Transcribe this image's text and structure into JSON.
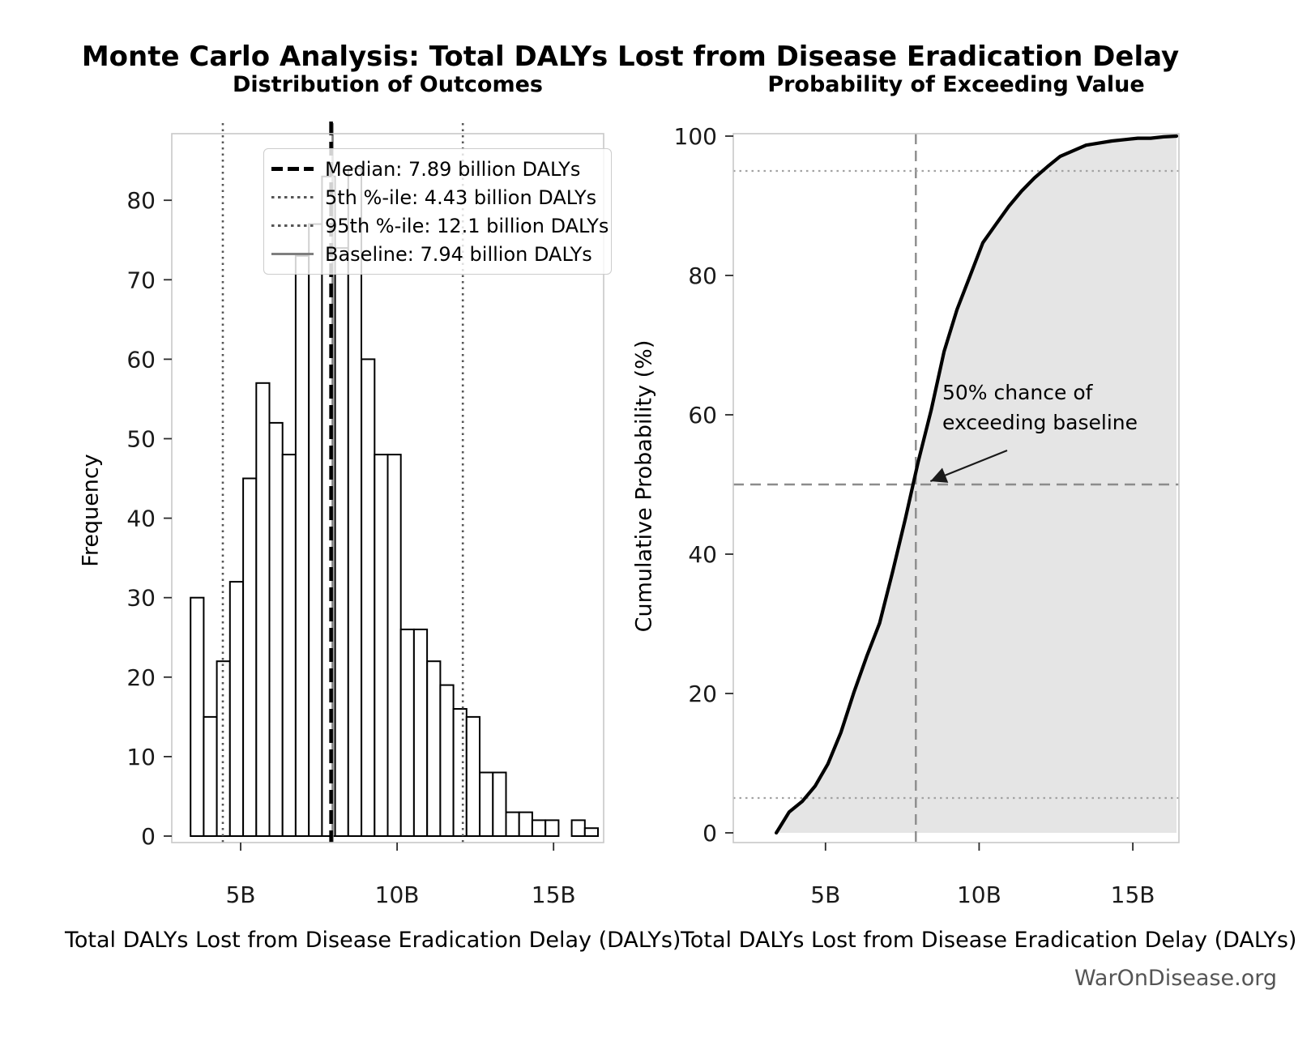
{
  "page": {
    "main_title": "Monte Carlo Analysis: Total DALYs Lost from Disease Eradication Delay",
    "watermark": "WarOnDisease.org"
  },
  "chart_data": [
    {
      "id": "outcome-histogram",
      "type": "bar",
      "title": "Distribution of Outcomes",
      "xlabel": "Total DALYs Lost from Disease Eradication Delay (DALYs)",
      "ylabel": "Frequency",
      "bin_start_billion": 3.4,
      "bin_width_billion": 0.42,
      "values": [
        30,
        15,
        22,
        32,
        45,
        57,
        52,
        48,
        73,
        77,
        83,
        74,
        84,
        60,
        48,
        48,
        26,
        26,
        22,
        19,
        16,
        15,
        8,
        8,
        3,
        3,
        2,
        2,
        0,
        2,
        1
      ],
      "xlim_billion": [
        2.8,
        16.6
      ],
      "ylim": [
        0,
        88
      ],
      "xticks": [
        {
          "value": 5,
          "label": "5B"
        },
        {
          "value": 10,
          "label": "10B"
        },
        {
          "value": 15,
          "label": "15B"
        }
      ],
      "yticks": [
        0,
        10,
        20,
        30,
        40,
        50,
        60,
        70,
        80
      ],
      "grid": false,
      "bar_fill": "#ffffff",
      "bar_edge": "#000000",
      "legend": {
        "position": "upper-left-inside",
        "items": [
          {
            "name": "median",
            "style": "dashed",
            "color": "#000000",
            "value_billion": 7.89,
            "label": "Median: 7.89 billion DALYs"
          },
          {
            "name": "p5",
            "style": "dotted",
            "color": "#565656",
            "value_billion": 4.43,
            "label": "5th %-ile: 4.43 billion DALYs"
          },
          {
            "name": "p95",
            "style": "dotted",
            "color": "#565656",
            "value_billion": 12.1,
            "label": "95th %-ile: 12.1 billion DALYs"
          },
          {
            "name": "baseline",
            "style": "solid",
            "color": "#7f7f7f",
            "value_billion": 7.94,
            "label": "Baseline: 7.94 billion DALYs"
          }
        ]
      }
    },
    {
      "id": "exceedance-cdf",
      "type": "line",
      "title": "Probability of Exceeding Value",
      "xlabel": "Total DALYs Lost from Disease Eradication Delay (DALYs)",
      "ylabel": "Cumulative Probability (%)",
      "x_billion": [
        3.4,
        3.82,
        4.24,
        4.66,
        5.08,
        5.5,
        5.92,
        6.34,
        6.76,
        7.18,
        7.6,
        8.02,
        8.44,
        8.86,
        9.28,
        9.7,
        10.12,
        10.54,
        10.96,
        11.38,
        11.8,
        12.22,
        12.64,
        13.06,
        13.48,
        13.9,
        14.32,
        14.74,
        15.16,
        15.58,
        16.0,
        16.42
      ],
      "y_percent": [
        0,
        3.0,
        4.5,
        6.7,
        9.9,
        14.4,
        20.1,
        25.3,
        30.1,
        37.4,
        45.1,
        53.3,
        60.7,
        69.1,
        75.1,
        79.9,
        84.7,
        87.3,
        89.9,
        92.1,
        94.0,
        95.6,
        97.1,
        97.9,
        98.7,
        99.0,
        99.3,
        99.5,
        99.7,
        99.7,
        99.9,
        100.0
      ],
      "xlim_billion": [
        2.0,
        16.5
      ],
      "ylim": [
        0,
        100
      ],
      "xticks": [
        {
          "value": 5,
          "label": "5B"
        },
        {
          "value": 10,
          "label": "10B"
        },
        {
          "value": 15,
          "label": "15B"
        }
      ],
      "yticks": [
        0,
        20,
        40,
        60,
        80,
        100
      ],
      "line_color": "#000000",
      "fill_color": "#e5e5e5",
      "reference_lines": [
        {
          "orientation": "vertical",
          "value_billion": 7.94,
          "style": "dashed",
          "color": "#8c8c8c"
        },
        {
          "orientation": "horizontal",
          "value_percent": 50,
          "style": "dashed",
          "color": "#8c8c8c"
        },
        {
          "orientation": "horizontal",
          "value_percent": 95,
          "style": "dotted",
          "color": "#a3a3a3"
        },
        {
          "orientation": "horizontal",
          "value_percent": 5,
          "style": "dotted",
          "color": "#a3a3a3"
        }
      ],
      "annotation": {
        "line1": "50% chance of",
        "line2": "exceeding baseline",
        "target_billion": 7.94,
        "target_percent": 50
      }
    }
  ]
}
